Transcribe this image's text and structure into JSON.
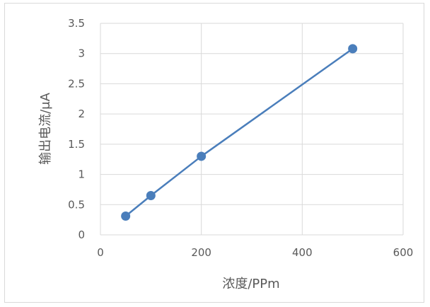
{
  "chart_data": {
    "type": "line",
    "title": "",
    "xlabel": "浓度/PPm",
    "ylabel": "输出电流/μA",
    "xlim": [
      0,
      600
    ],
    "ylim": [
      0,
      3.5
    ],
    "xticks": [
      "0",
      "200",
      "400",
      "600"
    ],
    "yticks": [
      "0",
      "0.5",
      "1",
      "1.5",
      "2",
      "2.5",
      "3",
      "3.5"
    ],
    "grid": true,
    "legend": "none",
    "series": [
      {
        "color": "#4a7ebb",
        "x": [
          50,
          100,
          200,
          500
        ],
        "y": [
          0.31,
          0.65,
          1.3,
          3.08
        ]
      }
    ]
  }
}
